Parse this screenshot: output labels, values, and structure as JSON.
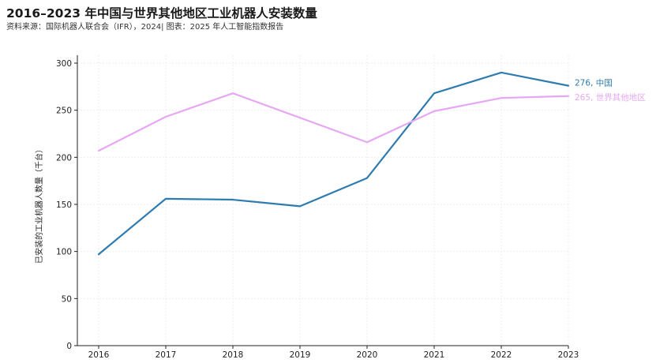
{
  "header": {
    "title": "2016–2023 年中国与世界其他地区工业机器人安装数量",
    "subtitle": "资料来源：国际机器人联合会（IFR），2024| 图表：2025 年人工智能指数报告"
  },
  "chart_data": {
    "type": "line",
    "x": [
      "2016",
      "2017",
      "2018",
      "2019",
      "2020",
      "2021",
      "2022",
      "2023"
    ],
    "ylabel": "已安装的工业机器人数量（千台）",
    "xlabel": "",
    "ylim": [
      0,
      300
    ],
    "yticks": [
      0,
      50,
      100,
      150,
      200,
      250,
      300
    ],
    "grid": true,
    "series": [
      {
        "name": "中国",
        "color": "#2e7bb0",
        "values": [
          97,
          156,
          155,
          148,
          178,
          268,
          290,
          276
        ],
        "end_label": "276, 中国"
      },
      {
        "name": "世界其他地区",
        "color": "#e6a8f2",
        "values": [
          207,
          243,
          268,
          242,
          216,
          249,
          263,
          265
        ],
        "end_label": "265, 世界其他地区"
      }
    ]
  }
}
